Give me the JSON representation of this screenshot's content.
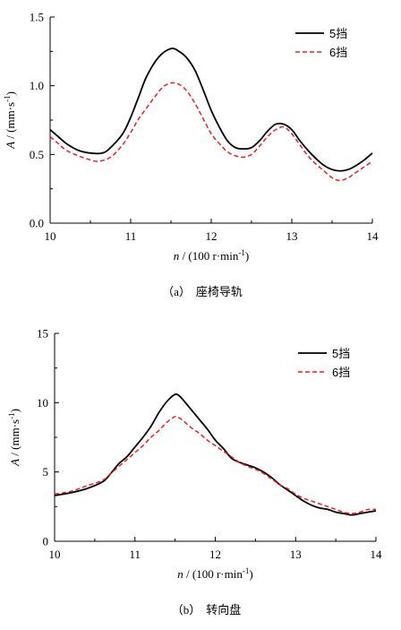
{
  "chart_data": [
    {
      "type": "line",
      "panel": "a",
      "caption_letter": "（a）",
      "caption_text": "座椅导轨",
      "xlabel_var": "n",
      "xlabel_unit": " / (100 r·min",
      "xlabel_exp": "-1",
      "xlabel_close": ")",
      "ylabel_var": "A",
      "ylabel_unit": " / (mm·s",
      "ylabel_exp": "-1",
      "ylabel_close": ")",
      "xlim": [
        10,
        14
      ],
      "ylim": [
        0,
        1.5
      ],
      "xticks": [
        "10",
        "11",
        "12",
        "13",
        "14"
      ],
      "yticks": [
        "0.0",
        "0.5",
        "1.0",
        "1.5"
      ],
      "grid": false,
      "legend_position": "top-right",
      "series": [
        {
          "name": "5挡",
          "color": "#000000",
          "dash": "solid",
          "points": [
            [
              10.0,
              0.68
            ],
            [
              10.1,
              0.63
            ],
            [
              10.2,
              0.58
            ],
            [
              10.35,
              0.53
            ],
            [
              10.5,
              0.51
            ],
            [
              10.65,
              0.51
            ],
            [
              10.75,
              0.55
            ],
            [
              10.9,
              0.65
            ],
            [
              11.0,
              0.77
            ],
            [
              11.1,
              0.92
            ],
            [
              11.2,
              1.07
            ],
            [
              11.35,
              1.21
            ],
            [
              11.5,
              1.27
            ],
            [
              11.6,
              1.25
            ],
            [
              11.7,
              1.2
            ],
            [
              11.8,
              1.11
            ],
            [
              11.9,
              0.97
            ],
            [
              12.0,
              0.82
            ],
            [
              12.1,
              0.7
            ],
            [
              12.2,
              0.6
            ],
            [
              12.3,
              0.55
            ],
            [
              12.4,
              0.54
            ],
            [
              12.5,
              0.55
            ],
            [
              12.6,
              0.6
            ],
            [
              12.7,
              0.67
            ],
            [
              12.8,
              0.72
            ],
            [
              12.9,
              0.72
            ],
            [
              13.0,
              0.68
            ],
            [
              13.1,
              0.6
            ],
            [
              13.2,
              0.53
            ],
            [
              13.3,
              0.47
            ],
            [
              13.4,
              0.42
            ],
            [
              13.5,
              0.39
            ],
            [
              13.6,
              0.38
            ],
            [
              13.7,
              0.39
            ],
            [
              13.8,
              0.42
            ],
            [
              13.9,
              0.46
            ],
            [
              14.0,
              0.51
            ]
          ]
        },
        {
          "name": "6挡",
          "color": "#e52222",
          "dash": "dashed",
          "points": [
            [
              10.0,
              0.63
            ],
            [
              10.1,
              0.58
            ],
            [
              10.2,
              0.53
            ],
            [
              10.35,
              0.49
            ],
            [
              10.5,
              0.46
            ],
            [
              10.6,
              0.45
            ],
            [
              10.75,
              0.48
            ],
            [
              10.9,
              0.57
            ],
            [
              11.0,
              0.66
            ],
            [
              11.1,
              0.76
            ],
            [
              11.2,
              0.84
            ],
            [
              11.3,
              0.92
            ],
            [
              11.4,
              0.99
            ],
            [
              11.5,
              1.02
            ],
            [
              11.6,
              1.01
            ],
            [
              11.7,
              0.96
            ],
            [
              11.8,
              0.87
            ],
            [
              11.9,
              0.76
            ],
            [
              12.0,
              0.65
            ],
            [
              12.1,
              0.58
            ],
            [
              12.2,
              0.52
            ],
            [
              12.3,
              0.49
            ],
            [
              12.4,
              0.48
            ],
            [
              12.5,
              0.5
            ],
            [
              12.6,
              0.56
            ],
            [
              12.7,
              0.63
            ],
            [
              12.8,
              0.68
            ],
            [
              12.9,
              0.7
            ],
            [
              13.0,
              0.65
            ],
            [
              13.1,
              0.57
            ],
            [
              13.2,
              0.49
            ],
            [
              13.3,
              0.43
            ],
            [
              13.4,
              0.38
            ],
            [
              13.5,
              0.33
            ],
            [
              13.6,
              0.31
            ],
            [
              13.7,
              0.33
            ],
            [
              13.8,
              0.37
            ],
            [
              13.9,
              0.41
            ],
            [
              14.0,
              0.45
            ]
          ]
        }
      ]
    },
    {
      "type": "line",
      "panel": "b",
      "caption_letter": "（b）",
      "caption_text": "转向盘",
      "xlabel_var": "n",
      "xlabel_unit": " / (100 r·min",
      "xlabel_exp": "-1",
      "xlabel_close": ")",
      "ylabel_var": "A",
      "ylabel_unit": " / (mm·s",
      "ylabel_exp": "-1",
      "ylabel_close": ")",
      "xlim": [
        10,
        14
      ],
      "ylim": [
        0,
        15
      ],
      "xticks": [
        "10",
        "11",
        "12",
        "13",
        "14"
      ],
      "yticks": [
        "0",
        "5",
        "10",
        "15"
      ],
      "grid": false,
      "legend_position": "top-right",
      "series": [
        {
          "name": "5挡",
          "color": "#000000",
          "dash": "solid",
          "points": [
            [
              10.0,
              3.3
            ],
            [
              10.2,
              3.5
            ],
            [
              10.4,
              3.8
            ],
            [
              10.6,
              4.3
            ],
            [
              10.7,
              4.9
            ],
            [
              10.8,
              5.6
            ],
            [
              10.9,
              6.1
            ],
            [
              11.0,
              6.8
            ],
            [
              11.1,
              7.5
            ],
            [
              11.2,
              8.3
            ],
            [
              11.3,
              9.3
            ],
            [
              11.4,
              10.1
            ],
            [
              11.5,
              10.6
            ],
            [
              11.55,
              10.5
            ],
            [
              11.6,
              10.2
            ],
            [
              11.7,
              9.5
            ],
            [
              11.8,
              8.8
            ],
            [
              11.9,
              8.1
            ],
            [
              12.0,
              7.3
            ],
            [
              12.1,
              6.7
            ],
            [
              12.2,
              6.0
            ],
            [
              12.3,
              5.7
            ],
            [
              12.4,
              5.5
            ],
            [
              12.5,
              5.3
            ],
            [
              12.6,
              5.0
            ],
            [
              12.7,
              4.6
            ],
            [
              12.8,
              4.1
            ],
            [
              12.9,
              3.7
            ],
            [
              13.0,
              3.3
            ],
            [
              13.1,
              2.9
            ],
            [
              13.2,
              2.6
            ],
            [
              13.3,
              2.4
            ],
            [
              13.4,
              2.3
            ],
            [
              13.5,
              2.1
            ],
            [
              13.6,
              2.0
            ],
            [
              13.7,
              1.9
            ],
            [
              13.8,
              2.0
            ],
            [
              13.9,
              2.1
            ],
            [
              14.0,
              2.2
            ]
          ]
        },
        {
          "name": "6挡",
          "color": "#e52222",
          "dash": "dashed",
          "points": [
            [
              10.0,
              3.4
            ],
            [
              10.2,
              3.6
            ],
            [
              10.4,
              4.0
            ],
            [
              10.6,
              4.4
            ],
            [
              10.7,
              4.9
            ],
            [
              10.8,
              5.4
            ],
            [
              10.9,
              5.9
            ],
            [
              11.0,
              6.4
            ],
            [
              11.1,
              6.9
            ],
            [
              11.2,
              7.5
            ],
            [
              11.3,
              8.0
            ],
            [
              11.4,
              8.6
            ],
            [
              11.5,
              9.0
            ],
            [
              11.55,
              8.9
            ],
            [
              11.6,
              8.7
            ],
            [
              11.7,
              8.2
            ],
            [
              11.8,
              7.8
            ],
            [
              11.9,
              7.3
            ],
            [
              12.0,
              6.9
            ],
            [
              12.1,
              6.5
            ],
            [
              12.2,
              6.1
            ],
            [
              12.3,
              5.7
            ],
            [
              12.4,
              5.4
            ],
            [
              12.5,
              5.2
            ],
            [
              12.6,
              4.9
            ],
            [
              12.7,
              4.5
            ],
            [
              12.8,
              4.1
            ],
            [
              12.9,
              3.8
            ],
            [
              13.0,
              3.4
            ],
            [
              13.1,
              3.1
            ],
            [
              13.2,
              2.9
            ],
            [
              13.3,
              2.7
            ],
            [
              13.4,
              2.5
            ],
            [
              13.5,
              2.3
            ],
            [
              13.6,
              2.1
            ],
            [
              13.7,
              2.0
            ],
            [
              13.8,
              2.1
            ],
            [
              13.9,
              2.3
            ],
            [
              14.0,
              2.3
            ]
          ]
        }
      ]
    }
  ]
}
